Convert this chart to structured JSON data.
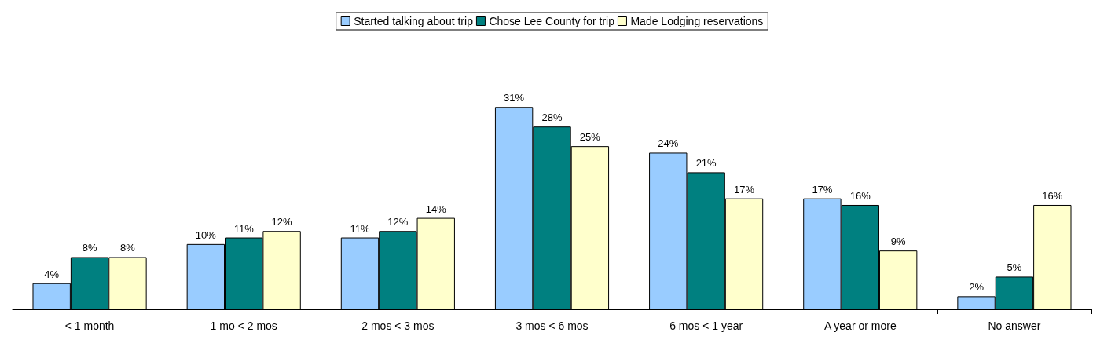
{
  "chart_data": {
    "type": "bar",
    "categories": [
      "< 1 month",
      "1 mo < 2 mos",
      "2 mos < 3 mos",
      "3 mos < 6 mos",
      "6 mos < 1 year",
      "A year or more",
      "No answer"
    ],
    "series": [
      {
        "name": "Started talking about trip",
        "color": "#99ccff",
        "values": [
          4,
          10,
          11,
          31,
          24,
          17,
          2
        ],
        "value_labels": [
          "4%",
          "10%",
          "11%",
          "31%",
          "24%",
          "17%",
          "2%"
        ]
      },
      {
        "name": "Chose Lee County for trip",
        "color": "#008080",
        "values": [
          8,
          11,
          12,
          28,
          21,
          16,
          5
        ],
        "value_labels": [
          "8%",
          "11%",
          "12%",
          "28%",
          "21%",
          "16%",
          "5%"
        ]
      },
      {
        "name": "Made Lodging reservations",
        "color": "#ffffcc",
        "values": [
          8,
          12,
          14,
          25,
          17,
          9,
          16
        ],
        "value_labels": [
          "8%",
          "12%",
          "14%",
          "25%",
          "17%",
          "9%",
          "16%"
        ]
      }
    ],
    "legend": "top"
  }
}
